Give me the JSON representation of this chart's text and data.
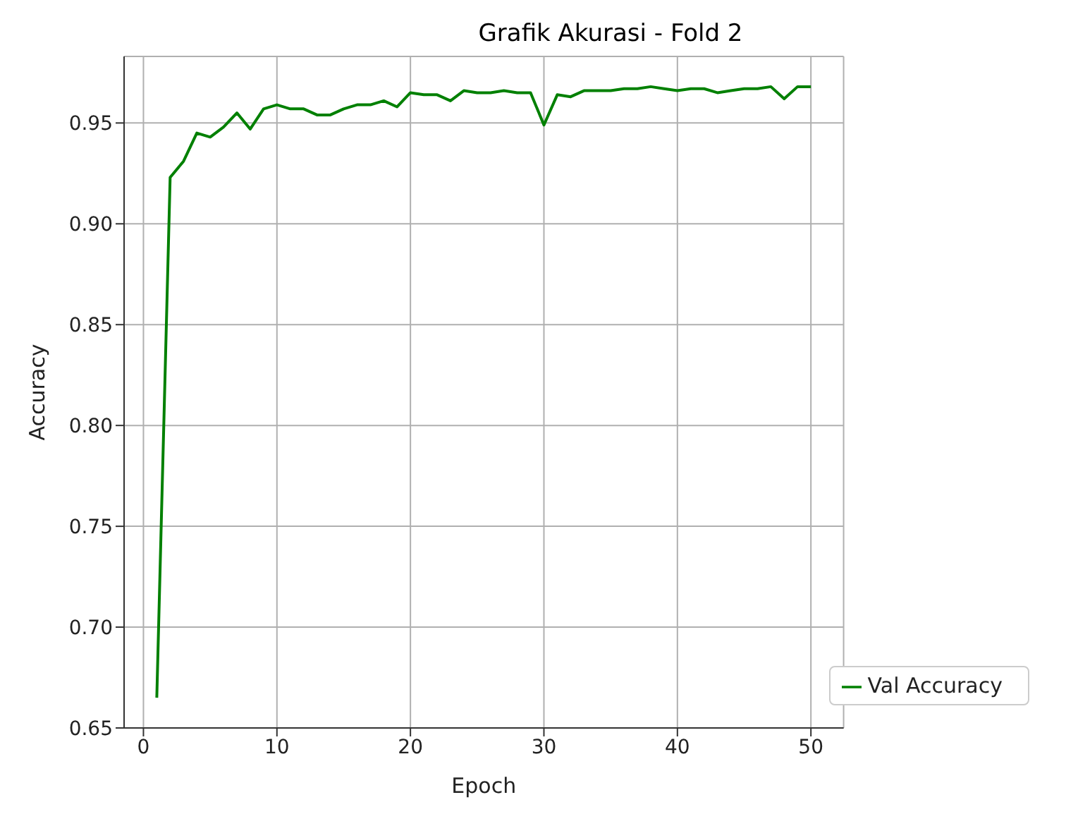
{
  "chart_data": {
    "type": "line",
    "title": "Grafik Akurasi - Fold 2",
    "xlabel": "Epoch",
    "ylabel": "Accuracy",
    "x": [
      1,
      2,
      3,
      4,
      5,
      6,
      7,
      8,
      9,
      10,
      11,
      12,
      13,
      14,
      15,
      16,
      17,
      18,
      19,
      20,
      21,
      22,
      23,
      24,
      25,
      26,
      27,
      28,
      29,
      30,
      31,
      32,
      33,
      34,
      35,
      36,
      37,
      38,
      39,
      40,
      41,
      42,
      43,
      44,
      45,
      46,
      47,
      48,
      49,
      50
    ],
    "series": [
      {
        "name": "Val Accuracy",
        "color": "#008000",
        "values": [
          0.665,
          0.923,
          0.931,
          0.945,
          0.943,
          0.948,
          0.955,
          0.947,
          0.957,
          0.959,
          0.957,
          0.957,
          0.954,
          0.954,
          0.957,
          0.959,
          0.959,
          0.961,
          0.958,
          0.965,
          0.964,
          0.964,
          0.961,
          0.966,
          0.965,
          0.965,
          0.966,
          0.965,
          0.965,
          0.949,
          0.964,
          0.963,
          0.966,
          0.966,
          0.966,
          0.967,
          0.967,
          0.968,
          0.967,
          0.966,
          0.967,
          0.967,
          0.965,
          0.966,
          0.967,
          0.967,
          0.968,
          0.962,
          0.968,
          0.968
        ]
      }
    ],
    "xlim": [
      -1.45,
      52.45
    ],
    "xticks": [
      0,
      10,
      20,
      30,
      40,
      50
    ],
    "ylim": [
      0.65,
      0.983
    ],
    "yticks": [
      {
        "value": 0.65,
        "label": "0.65"
      },
      {
        "value": 0.7,
        "label": "0.70"
      },
      {
        "value": 0.75,
        "label": "0.75"
      },
      {
        "value": 0.8,
        "label": "0.80"
      },
      {
        "value": 0.85,
        "label": "0.85"
      },
      {
        "value": 0.9,
        "label": "0.90"
      },
      {
        "value": 0.95,
        "label": "0.95"
      }
    ],
    "grid": true,
    "legend": "bottom right",
    "marker": "none",
    "line_style": "solid"
  }
}
